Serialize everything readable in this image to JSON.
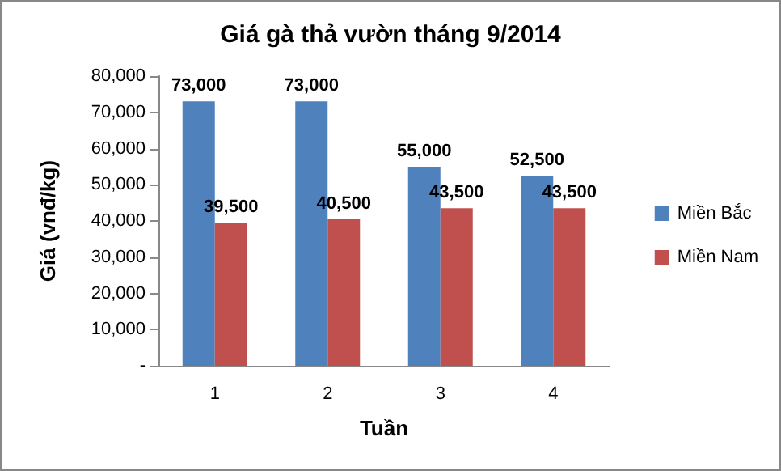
{
  "chart_data": {
    "type": "bar",
    "title": "Giá gà thả vườn tháng 9/2014",
    "xlabel": "Tuần",
    "ylabel": "Giá (vnđ/kg)",
    "categories": [
      "1",
      "2",
      "3",
      "4"
    ],
    "series": [
      {
        "name": "Miền Bắc",
        "color": "#4f81bd",
        "values": [
          73000,
          73000,
          55000,
          52500
        ],
        "value_labels": [
          "73,000",
          "73,000",
          "55,000",
          "52,500"
        ]
      },
      {
        "name": "Miền Nam",
        "color": "#c0504d",
        "values": [
          39500,
          40500,
          43500,
          43500
        ],
        "value_labels": [
          "39,500",
          "40,500",
          "43,500",
          "43,500"
        ]
      }
    ],
    "ylim": [
      0,
      80000
    ],
    "yticks": [
      {
        "value": 0,
        "label": "-"
      },
      {
        "value": 10000,
        "label": "10,000"
      },
      {
        "value": 20000,
        "label": "20,000"
      },
      {
        "value": 30000,
        "label": "30,000"
      },
      {
        "value": 40000,
        "label": "40,000"
      },
      {
        "value": 50000,
        "label": "50,000"
      },
      {
        "value": 60000,
        "label": "60,000"
      },
      {
        "value": 70000,
        "label": "70,000"
      },
      {
        "value": 80000,
        "label": "80,000"
      }
    ],
    "grid": false,
    "legend": "right"
  }
}
